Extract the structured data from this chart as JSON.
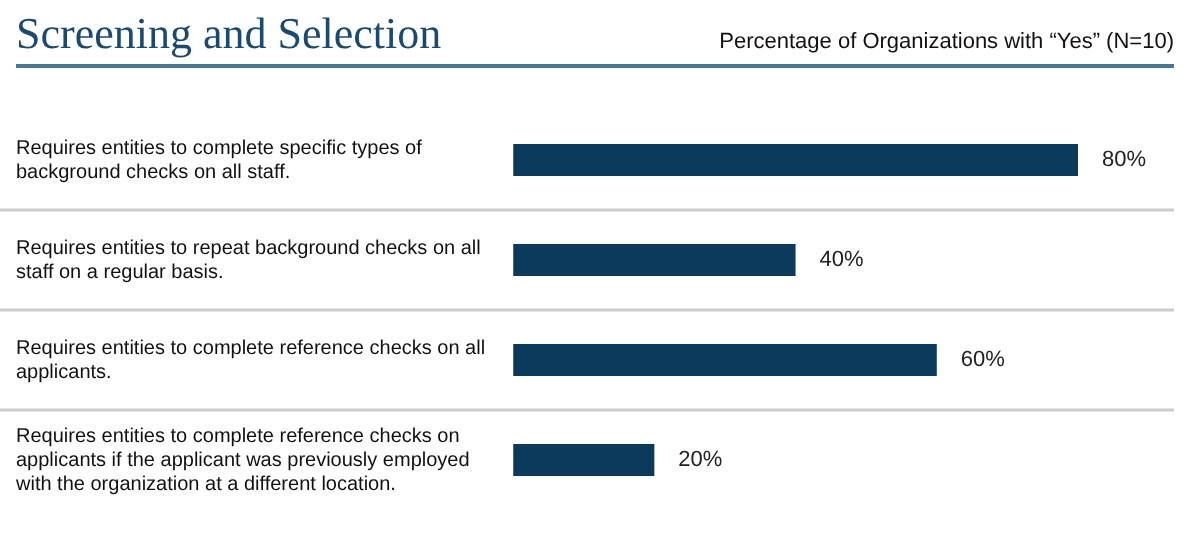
{
  "chart_data": {
    "type": "bar",
    "orientation": "horizontal",
    "title": "Screening and Selection",
    "subtitle": "Percentage of Organizations with “Yes” (N=10)",
    "categories": [
      "Requires entities to complete specific types of background checks on all staff.",
      "Requires entities to repeat background checks on all staff on a regular basis.",
      "Requires entities to complete reference checks on all applicants.",
      "Requires entities to complete reference checks on applicants if the applicant was previously employed with the organization at a different location."
    ],
    "values": [
      80,
      40,
      60,
      20
    ],
    "color": "#0b3a5c",
    "value_labels": [
      "80%",
      "40%",
      "60%",
      "20%"
    ],
    "tick_labels": "y",
    "grid": "y",
    "legend": false
  }
}
